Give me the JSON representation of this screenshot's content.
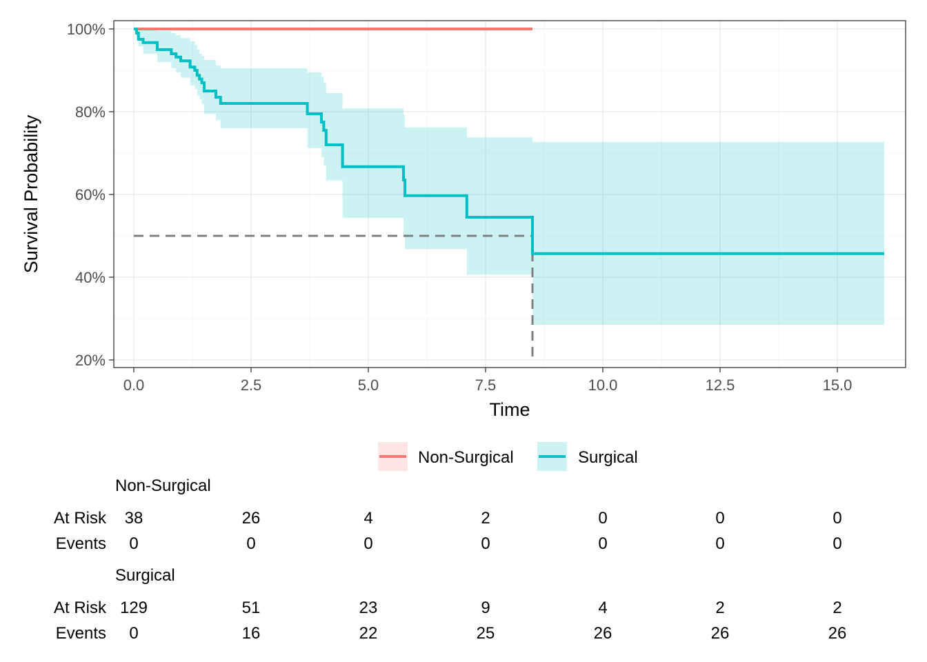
{
  "chart_data": {
    "type": "line",
    "subtype": "kaplan-meier survival curve with confidence bands",
    "xlabel": "Time",
    "ylabel": "Survival Probability",
    "xlim": [
      0,
      16
    ],
    "ylim": [
      0.2,
      1.0
    ],
    "x_ticks": [
      0,
      2.5,
      5.0,
      7.5,
      10.0,
      12.5,
      15.0
    ],
    "x_tick_labels": [
      "0.0",
      "2.5",
      "5.0",
      "7.5",
      "10.0",
      "12.5",
      "15.0"
    ],
    "y_ticks": [
      0.2,
      0.4,
      0.6,
      0.8,
      1.0
    ],
    "y_tick_labels": [
      "20%",
      "40%",
      "60%",
      "80%",
      "100%"
    ],
    "grid": true,
    "legend_position": "bottom",
    "median_survival": {
      "time": 8.5,
      "probability": 0.5
    },
    "series": [
      {
        "name": "Non-Surgical",
        "color": "#F8766D",
        "fill_color": "#F8766D",
        "steps": [
          [
            0,
            1.0
          ],
          [
            8.5,
            1.0
          ]
        ],
        "ci_lower": [
          [
            0,
            1.0
          ],
          [
            8.5,
            1.0
          ]
        ],
        "ci_upper": [
          [
            0,
            1.0
          ],
          [
            8.5,
            1.0
          ]
        ]
      },
      {
        "name": "Surgical",
        "color": "#00BFC4",
        "fill_color": "#00BFC4",
        "steps": [
          [
            0,
            1.0
          ],
          [
            0.06,
            0.99
          ],
          [
            0.1,
            0.975
          ],
          [
            0.2,
            0.967
          ],
          [
            0.5,
            0.95
          ],
          [
            0.8,
            0.94
          ],
          [
            0.9,
            0.932
          ],
          [
            1.0,
            0.923
          ],
          [
            1.2,
            0.908
          ],
          [
            1.3,
            0.9
          ],
          [
            1.35,
            0.888
          ],
          [
            1.4,
            0.879
          ],
          [
            1.45,
            0.87
          ],
          [
            1.5,
            0.85
          ],
          [
            1.75,
            0.835
          ],
          [
            1.85,
            0.82
          ],
          [
            3.7,
            0.795
          ],
          [
            4.0,
            0.775
          ],
          [
            4.05,
            0.755
          ],
          [
            4.1,
            0.72
          ],
          [
            4.45,
            0.667
          ],
          [
            5.75,
            0.635
          ],
          [
            5.78,
            0.597
          ],
          [
            7.1,
            0.545
          ],
          [
            8.5,
            0.457
          ],
          [
            16.0,
            0.457
          ]
        ],
        "ci_lower": [
          [
            0,
            1.0
          ],
          [
            0.06,
            0.975
          ],
          [
            0.1,
            0.958
          ],
          [
            0.2,
            0.94
          ],
          [
            0.5,
            0.92
          ],
          [
            0.8,
            0.905
          ],
          [
            0.9,
            0.895
          ],
          [
            1.0,
            0.882
          ],
          [
            1.2,
            0.864
          ],
          [
            1.3,
            0.855
          ],
          [
            1.35,
            0.84
          ],
          [
            1.4,
            0.83
          ],
          [
            1.45,
            0.818
          ],
          [
            1.5,
            0.795
          ],
          [
            1.75,
            0.78
          ],
          [
            1.85,
            0.76
          ],
          [
            3.7,
            0.712
          ],
          [
            4.0,
            0.69
          ],
          [
            4.05,
            0.67
          ],
          [
            4.1,
            0.634
          ],
          [
            4.45,
            0.543
          ],
          [
            5.75,
            0.502
          ],
          [
            5.78,
            0.468
          ],
          [
            7.1,
            0.406
          ],
          [
            8.5,
            0.285
          ],
          [
            16.0,
            0.285
          ]
        ],
        "ci_upper": [
          [
            0,
            1.0
          ],
          [
            0.06,
            1.0
          ],
          [
            0.1,
            1.0
          ],
          [
            0.2,
            1.0
          ],
          [
            0.5,
            0.995
          ],
          [
            0.8,
            0.99
          ],
          [
            0.9,
            0.985
          ],
          [
            1.0,
            0.978
          ],
          [
            1.2,
            0.97
          ],
          [
            1.3,
            0.962
          ],
          [
            1.35,
            0.95
          ],
          [
            1.4,
            0.94
          ],
          [
            1.45,
            0.935
          ],
          [
            1.5,
            0.925
          ],
          [
            1.75,
            0.912
          ],
          [
            1.85,
            0.905
          ],
          [
            3.7,
            0.895
          ],
          [
            4.0,
            0.885
          ],
          [
            4.05,
            0.87
          ],
          [
            4.1,
            0.845
          ],
          [
            4.45,
            0.808
          ],
          [
            5.75,
            0.792
          ],
          [
            5.78,
            0.762
          ],
          [
            7.1,
            0.738
          ],
          [
            8.5,
            0.727
          ],
          [
            16.0,
            0.727
          ]
        ]
      }
    ]
  },
  "risk_table": {
    "times": [
      0,
      2.5,
      5.0,
      7.5,
      10.0,
      12.5,
      15.0
    ],
    "row_labels": {
      "at_risk": "At Risk",
      "events": "Events"
    },
    "groups": [
      {
        "name": "Non-Surgical",
        "at_risk": [
          "38",
          "26",
          "4",
          "2",
          "0",
          "0",
          "0"
        ],
        "events": [
          "0",
          "0",
          "0",
          "0",
          "0",
          "0",
          "0"
        ]
      },
      {
        "name": "Surgical",
        "at_risk": [
          "129",
          "51",
          "23",
          "9",
          "4",
          "2",
          "2"
        ],
        "events": [
          "0",
          "16",
          "22",
          "25",
          "26",
          "26",
          "26"
        ]
      }
    ]
  }
}
